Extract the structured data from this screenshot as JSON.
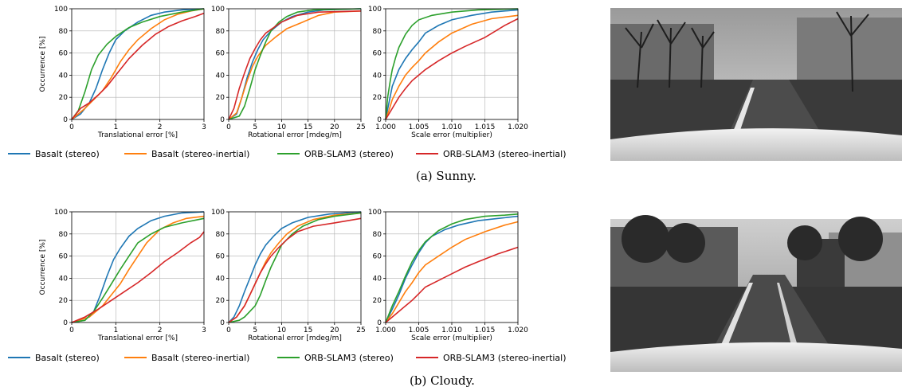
{
  "colors": {
    "basalt_stereo": "#1f77b4",
    "basalt_stereo_inertial": "#ff7f0e",
    "orb_stereo": "#2ca02c",
    "orb_stereo_inertial": "#d62728",
    "grid": "#b0b0b0"
  },
  "legend": [
    {
      "label": "Basalt (stereo)",
      "color": "#1f77b4"
    },
    {
      "label": "Basalt (stereo-inertial)",
      "color": "#ff7f0e"
    },
    {
      "label": "ORB-SLAM3 (stereo)",
      "color": "#2ca02c"
    },
    {
      "label": "ORB-SLAM3 (stereo-inertial)",
      "color": "#d62728"
    }
  ],
  "captions": {
    "sunny": "(a) Sunny.",
    "cloudy": "(b) Cloudy."
  },
  "photos": [
    {
      "scene": "sunny",
      "icon": "grayscale-street-photo"
    },
    {
      "scene": "cloudy",
      "icon": "grayscale-street-photo"
    }
  ],
  "chart_data": [
    {
      "type": "line",
      "row": 0,
      "xlabel": "Translational error [%]",
      "ylabel": "Occurrence [%]",
      "xlim": [
        0,
        3
      ],
      "ylim": [
        0,
        100
      ],
      "xticks": [
        0,
        1,
        2,
        3
      ],
      "xticklabels": [
        "0",
        "1",
        "2",
        "3"
      ],
      "yticks": [
        0,
        20,
        40,
        60,
        80,
        100
      ],
      "yticklabels": [
        "0",
        "20",
        "40",
        "60",
        "80",
        "100"
      ],
      "grid": true,
      "series": [
        {
          "name": "Basalt (stereo)",
          "x": [
            0,
            0.2,
            0.4,
            0.55,
            0.7,
            0.85,
            1.0,
            1.2,
            1.5,
            1.8,
            2.1,
            2.5,
            3.0
          ],
          "y": [
            0,
            5,
            15,
            28,
            45,
            60,
            72,
            80,
            88,
            94,
            97,
            99,
            100
          ]
        },
        {
          "name": "Basalt (stereo-inertial)",
          "x": [
            0,
            0.3,
            0.5,
            0.7,
            0.9,
            1.1,
            1.3,
            1.5,
            1.8,
            2.1,
            2.4,
            2.7,
            3.0
          ],
          "y": [
            0,
            10,
            18,
            26,
            38,
            52,
            63,
            72,
            82,
            90,
            95,
            98,
            100
          ]
        },
        {
          "name": "ORB-SLAM3 (stereo)",
          "x": [
            0,
            0.15,
            0.3,
            0.45,
            0.6,
            0.8,
            1.0,
            1.3,
            1.6,
            2.0,
            2.5,
            3.0
          ],
          "y": [
            0,
            8,
            25,
            45,
            58,
            68,
            75,
            83,
            88,
            93,
            97,
            100
          ]
        },
        {
          "name": "ORB-SLAM3 (stereo-inertial)",
          "x": [
            0,
            0.2,
            0.4,
            0.6,
            0.8,
            1.0,
            1.3,
            1.6,
            1.9,
            2.2,
            2.5,
            2.8,
            3.0
          ],
          "y": [
            0,
            10,
            15,
            22,
            30,
            40,
            55,
            67,
            77,
            84,
            89,
            93,
            96
          ]
        }
      ]
    },
    {
      "type": "line",
      "row": 0,
      "xlabel": "Rotational error [mdeg/m]",
      "ylabel": "",
      "xlim": [
        0,
        25
      ],
      "ylim": [
        0,
        100
      ],
      "xticks": [
        0,
        5,
        10,
        15,
        20,
        25
      ],
      "xticklabels": [
        "0",
        "5",
        "10",
        "15",
        "20",
        "25"
      ],
      "yticks": [
        0,
        20,
        40,
        60,
        80,
        100
      ],
      "yticklabels": [
        "0",
        "20",
        "40",
        "60",
        "80",
        "100"
      ],
      "grid": true,
      "series": [
        {
          "name": "Basalt (stereo)",
          "x": [
            0,
            1.5,
            2.5,
            3.5,
            4.5,
            5.5,
            6.5,
            8,
            10,
            12,
            15,
            18,
            25
          ],
          "y": [
            0,
            5,
            20,
            38,
            52,
            63,
            72,
            80,
            88,
            93,
            97,
            99,
            100
          ]
        },
        {
          "name": "Basalt (stereo-inertial)",
          "x": [
            0,
            1.5,
            2.5,
            3.5,
            4.5,
            5.5,
            7,
            9,
            11,
            14,
            17,
            20,
            25
          ],
          "y": [
            0,
            6,
            20,
            35,
            48,
            57,
            67,
            75,
            82,
            88,
            94,
            97,
            98
          ]
        },
        {
          "name": "ORB-SLAM3 (stereo)",
          "x": [
            0,
            2,
            3,
            4,
            5,
            6,
            7,
            8,
            9.5,
            11,
            13,
            16,
            25
          ],
          "y": [
            0,
            3,
            12,
            28,
            45,
            58,
            70,
            80,
            88,
            93,
            97,
            99,
            100
          ]
        },
        {
          "name": "ORB-SLAM3 (stereo-inertial)",
          "x": [
            0,
            1,
            2,
            3,
            4,
            5,
            6,
            7,
            8.5,
            10,
            13,
            17,
            25
          ],
          "y": [
            0,
            10,
            28,
            42,
            55,
            64,
            72,
            78,
            83,
            88,
            94,
            97,
            98
          ]
        }
      ]
    },
    {
      "type": "line",
      "row": 0,
      "xlabel": "Scale error (multiplier)",
      "ylabel": "",
      "xlim": [
        1.0,
        1.02
      ],
      "ylim": [
        0,
        100
      ],
      "xticks": [
        1.0,
        1.005,
        1.01,
        1.015,
        1.02
      ],
      "xticklabels": [
        "1.000",
        "1.005",
        "1.010",
        "1.015",
        "1.020"
      ],
      "yticks": [
        0,
        20,
        40,
        60,
        80,
        100
      ],
      "yticklabels": [
        "0",
        "20",
        "40",
        "60",
        "80",
        "100"
      ],
      "grid": true,
      "series": [
        {
          "name": "Basalt (stereo)",
          "x": [
            1.0,
            1.0005,
            1.001,
            1.002,
            1.003,
            1.004,
            1.005,
            1.006,
            1.008,
            1.01,
            1.013,
            1.016,
            1.02
          ],
          "y": [
            0,
            15,
            30,
            45,
            55,
            63,
            70,
            78,
            85,
            90,
            94,
            97,
            99
          ]
        },
        {
          "name": "Basalt (stereo-inertial)",
          "x": [
            1.0,
            1.0005,
            1.001,
            1.002,
            1.003,
            1.004,
            1.005,
            1.006,
            1.008,
            1.01,
            1.013,
            1.016,
            1.02
          ],
          "y": [
            0,
            8,
            18,
            30,
            40,
            47,
            53,
            60,
            70,
            78,
            86,
            91,
            94
          ]
        },
        {
          "name": "ORB-SLAM3 (stereo)",
          "x": [
            1.0,
            1.0003,
            1.0007,
            1.001,
            1.0015,
            1.002,
            1.003,
            1.004,
            1.005,
            1.007,
            1.01,
            1.014,
            1.02
          ],
          "y": [
            0,
            20,
            35,
            45,
            56,
            65,
            77,
            85,
            90,
            94,
            97,
            99,
            100
          ]
        },
        {
          "name": "ORB-SLAM3 (stereo-inertial)",
          "x": [
            1.0,
            1.001,
            1.002,
            1.003,
            1.004,
            1.005,
            1.006,
            1.008,
            1.01,
            1.012,
            1.015,
            1.018,
            1.02
          ],
          "y": [
            0,
            10,
            20,
            28,
            35,
            40,
            45,
            53,
            60,
            66,
            74,
            85,
            91
          ]
        }
      ]
    },
    {
      "type": "line",
      "row": 1,
      "xlabel": "Translational error [%]",
      "ylabel": "Occurrence [%]",
      "xlim": [
        0,
        3
      ],
      "ylim": [
        0,
        100
      ],
      "xticks": [
        0,
        1,
        2,
        3
      ],
      "xticklabels": [
        "0",
        "1",
        "2",
        "3"
      ],
      "yticks": [
        0,
        20,
        40,
        60,
        80,
        100
      ],
      "yticklabels": [
        "0",
        "20",
        "40",
        "60",
        "80",
        "100"
      ],
      "grid": true,
      "series": [
        {
          "name": "Basalt (stereo)",
          "x": [
            0,
            0.3,
            0.5,
            0.65,
            0.8,
            0.95,
            1.1,
            1.3,
            1.5,
            1.8,
            2.1,
            2.5,
            3.0
          ],
          "y": [
            0,
            2,
            10,
            25,
            42,
            57,
            67,
            78,
            85,
            92,
            96,
            99,
            100
          ]
        },
        {
          "name": "Basalt (stereo-inertial)",
          "x": [
            0,
            0.4,
            0.7,
            0.9,
            1.1,
            1.3,
            1.5,
            1.7,
            2.0,
            2.3,
            2.6,
            3.0
          ],
          "y": [
            0,
            5,
            15,
            25,
            35,
            48,
            60,
            72,
            84,
            90,
            94,
            96
          ]
        },
        {
          "name": "ORB-SLAM3 (stereo)",
          "x": [
            0,
            0.3,
            0.5,
            0.7,
            0.9,
            1.1,
            1.3,
            1.5,
            1.8,
            2.1,
            2.5,
            3.0
          ],
          "y": [
            0,
            2,
            10,
            22,
            35,
            48,
            60,
            72,
            80,
            86,
            90,
            94
          ]
        },
        {
          "name": "ORB-SLAM3 (stereo-inertial)",
          "x": [
            0,
            0.3,
            0.6,
            0.9,
            1.2,
            1.5,
            1.8,
            2.1,
            2.4,
            2.7,
            2.9,
            3.0
          ],
          "y": [
            0,
            5,
            12,
            20,
            28,
            36,
            45,
            55,
            63,
            72,
            77,
            82
          ]
        }
      ]
    },
    {
      "type": "line",
      "row": 1,
      "xlabel": "Rotational error [mdeg/m]",
      "ylabel": "",
      "xlim": [
        0,
        25
      ],
      "ylim": [
        0,
        100
      ],
      "xticks": [
        0,
        5,
        10,
        15,
        20,
        25
      ],
      "xticklabels": [
        "0",
        "5",
        "10",
        "15",
        "20",
        "25"
      ],
      "yticks": [
        0,
        20,
        40,
        60,
        80,
        100
      ],
      "yticklabels": [
        "0",
        "20",
        "40",
        "60",
        "80",
        "100"
      ],
      "grid": true,
      "series": [
        {
          "name": "Basalt (stereo)",
          "x": [
            0,
            1,
            2,
            3,
            4,
            5,
            6,
            7,
            8.5,
            10,
            12,
            15,
            19,
            25
          ],
          "y": [
            0,
            5,
            15,
            28,
            40,
            52,
            62,
            70,
            78,
            85,
            90,
            95,
            98,
            100
          ]
        },
        {
          "name": "Basalt (stereo-inertial)",
          "x": [
            0,
            1.5,
            3,
            4,
            5,
            6,
            7,
            8,
            9.5,
            11,
            13,
            16,
            20,
            25
          ],
          "y": [
            0,
            5,
            15,
            25,
            35,
            45,
            55,
            63,
            72,
            80,
            87,
            93,
            97,
            99
          ]
        },
        {
          "name": "ORB-SLAM3 (stereo)",
          "x": [
            0,
            2,
            3,
            4,
            5,
            6,
            7,
            8,
            9,
            10,
            12,
            14,
            17,
            20,
            25
          ],
          "y": [
            0,
            2,
            5,
            10,
            15,
            25,
            38,
            50,
            60,
            70,
            80,
            87,
            93,
            96,
            99
          ]
        },
        {
          "name": "ORB-SLAM3 (stereo-inertial)",
          "x": [
            0,
            1.5,
            3,
            4,
            5,
            6,
            7,
            8,
            9.5,
            11,
            13,
            16,
            20,
            25
          ],
          "y": [
            0,
            5,
            15,
            25,
            35,
            45,
            53,
            60,
            68,
            75,
            82,
            87,
            90,
            94
          ]
        }
      ]
    },
    {
      "type": "line",
      "row": 1,
      "xlabel": "Scale error (multiplier)",
      "ylabel": "",
      "xlim": [
        1.0,
        1.02
      ],
      "ylim": [
        0,
        100
      ],
      "xticks": [
        1.0,
        1.005,
        1.01,
        1.015,
        1.02
      ],
      "xticklabels": [
        "1.000",
        "1.005",
        "1.010",
        "1.015",
        "1.020"
      ],
      "yticks": [
        0,
        20,
        40,
        60,
        80,
        100
      ],
      "yticklabels": [
        "0",
        "20",
        "40",
        "60",
        "80",
        "100"
      ],
      "grid": true,
      "series": [
        {
          "name": "Basalt (stereo)",
          "x": [
            1.0,
            1.001,
            1.002,
            1.003,
            1.004,
            1.005,
            1.006,
            1.007,
            1.009,
            1.011,
            1.014,
            1.017,
            1.02
          ],
          "y": [
            0,
            12,
            25,
            40,
            52,
            63,
            72,
            78,
            84,
            88,
            92,
            94,
            96
          ]
        },
        {
          "name": "Basalt (stereo-inertial)",
          "x": [
            1.0,
            1.001,
            1.002,
            1.003,
            1.004,
            1.005,
            1.006,
            1.008,
            1.01,
            1.012,
            1.015,
            1.018,
            1.02
          ],
          "y": [
            0,
            8,
            18,
            28,
            36,
            45,
            52,
            60,
            68,
            75,
            82,
            88,
            91
          ]
        },
        {
          "name": "ORB-SLAM3 (stereo)",
          "x": [
            1.0,
            1.001,
            1.002,
            1.003,
            1.004,
            1.005,
            1.006,
            1.008,
            1.01,
            1.012,
            1.015,
            1.018,
            1.02
          ],
          "y": [
            0,
            15,
            28,
            42,
            55,
            65,
            73,
            83,
            89,
            93,
            96,
            97,
            98
          ]
        },
        {
          "name": "ORB-SLAM3 (stereo-inertial)",
          "x": [
            1.0,
            1.001,
            1.002,
            1.003,
            1.004,
            1.005,
            1.006,
            1.008,
            1.01,
            1.012,
            1.014,
            1.017,
            1.02
          ],
          "y": [
            0,
            5,
            10,
            15,
            20,
            26,
            32,
            38,
            44,
            50,
            55,
            62,
            68
          ]
        }
      ]
    }
  ]
}
